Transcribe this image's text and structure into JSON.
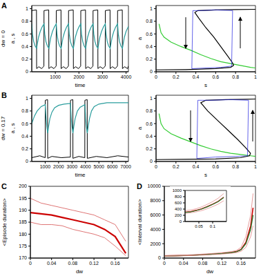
{
  "chart_data": [
    {
      "type": "line",
      "title": "A",
      "xlabel": "time",
      "ylabel": "a , s",
      "annotations": [
        "dw = 0"
      ],
      "xlim": [
        0,
        4100
      ],
      "ylim": [
        0,
        1.05
      ],
      "xticks": [
        1000,
        2000,
        3000,
        4000
      ],
      "yticks": [
        0,
        0.2,
        0.4,
        0.6,
        0.8,
        1
      ],
      "series": [
        {
          "color": "#000000",
          "x": [
            0,
            200,
            206,
            300,
            420,
            515,
            520,
            720,
            726,
            820,
            940,
            1035,
            1040,
            1240,
            1246,
            1340,
            1460,
            1555,
            1560,
            1760,
            1766,
            1860,
            1980,
            2075,
            2080,
            2280,
            2286,
            2380,
            2500,
            2595,
            2600,
            2800,
            2806,
            2900,
            3020,
            3115,
            3120,
            3320,
            3326,
            3420,
            3540,
            3635,
            3640,
            3840,
            3846,
            3940,
            4060,
            4100
          ],
          "values": [
            0.97,
            0.98,
            0.05,
            0.08,
            0.05,
            0.09,
            0.97,
            0.98,
            0.05,
            0.08,
            0.05,
            0.09,
            0.97,
            0.98,
            0.05,
            0.08,
            0.05,
            0.09,
            0.97,
            0.98,
            0.05,
            0.08,
            0.05,
            0.09,
            0.97,
            0.98,
            0.05,
            0.08,
            0.05,
            0.09,
            0.97,
            0.98,
            0.05,
            0.08,
            0.05,
            0.09,
            0.97,
            0.98,
            0.05,
            0.08,
            0.05,
            0.09,
            0.97,
            0.98,
            0.05,
            0.08,
            0.05,
            0.09
          ]
        },
        {
          "color": "#2a9d9d",
          "x": [
            0,
            30,
            80,
            140,
            206,
            240,
            290,
            360,
            440,
            520,
            550,
            600,
            660,
            726,
            760,
            810,
            880,
            960,
            1040,
            1070,
            1120,
            1180,
            1246,
            1280,
            1330,
            1400,
            1480,
            1560,
            1590,
            1640,
            1700,
            1766,
            1800,
            1850,
            1920,
            2000,
            2080,
            2110,
            2160,
            2220,
            2286,
            2320,
            2370,
            2440,
            2520,
            2600,
            2630,
            2680,
            2740,
            2806,
            2840,
            2890,
            2960,
            3040,
            3120,
            3150,
            3200,
            3260,
            3326,
            3360,
            3410,
            3480,
            3560,
            3640,
            3670,
            3720,
            3780,
            3846,
            3880,
            3930,
            4000,
            4100
          ],
          "values": [
            0.76,
            0.6,
            0.48,
            0.41,
            0.37,
            0.45,
            0.55,
            0.64,
            0.71,
            0.76,
            0.6,
            0.48,
            0.41,
            0.37,
            0.45,
            0.55,
            0.64,
            0.71,
            0.76,
            0.6,
            0.48,
            0.41,
            0.37,
            0.45,
            0.55,
            0.64,
            0.71,
            0.76,
            0.6,
            0.48,
            0.41,
            0.37,
            0.45,
            0.55,
            0.64,
            0.71,
            0.76,
            0.6,
            0.48,
            0.41,
            0.37,
            0.45,
            0.55,
            0.64,
            0.71,
            0.76,
            0.6,
            0.48,
            0.41,
            0.37,
            0.45,
            0.55,
            0.64,
            0.71,
            0.76,
            0.6,
            0.48,
            0.41,
            0.37,
            0.45,
            0.55,
            0.64,
            0.71,
            0.76,
            0.6,
            0.48,
            0.41,
            0.37,
            0.45,
            0.55,
            0.64,
            0.72
          ]
        }
      ]
    },
    {
      "type": "line",
      "xlabel": "s",
      "ylabel": "a",
      "xlim": [
        0,
        1
      ],
      "ylim": [
        0,
        1.05
      ],
      "xticks": [
        0,
        0.2,
        0.4,
        0.6,
        0.8,
        1
      ],
      "yticks": [
        0,
        0.2,
        0.4,
        0.6,
        0.8,
        1
      ],
      "series": [
        {
          "color": "#33cc33",
          "x": [
            0.03,
            0.05,
            0.08,
            0.15,
            0.25,
            0.35,
            0.45,
            0.55,
            0.65,
            0.75,
            0.85,
            0.95,
            1.0
          ],
          "values": [
            0.76,
            0.62,
            0.55,
            0.47,
            0.4,
            0.34,
            0.27,
            0.21,
            0.16,
            0.13,
            0.1,
            0.07,
            0.06
          ]
        },
        {
          "color": "#000000",
          "x": [
            0,
            0.3,
            0.6,
            0.75,
            0.78,
            0.77,
            0.72,
            0.65,
            0.58,
            0.5,
            0.43,
            0.39,
            0.42,
            0.6,
            0.8,
            1.0
          ],
          "values": [
            0.03,
            0.035,
            0.05,
            0.07,
            0.1,
            0.14,
            0.25,
            0.4,
            0.55,
            0.7,
            0.85,
            0.94,
            0.97,
            0.98,
            0.985,
            0.99
          ]
        },
        {
          "color": "#2020e0",
          "x": [
            0.77,
            0.6,
            0.45,
            0.37,
            0.36,
            0.37,
            0.5,
            0.65,
            0.76,
            0.77
          ],
          "values": [
            0.97,
            0.98,
            0.97,
            0.97,
            0.05,
            0.05,
            0.06,
            0.07,
            0.09,
            0.97
          ]
        }
      ]
    },
    {
      "type": "line",
      "title": "B",
      "xlabel": "time",
      "ylabel": "a , s",
      "annotations": [
        "dw = 0.17"
      ],
      "xlim": [
        0,
        7200
      ],
      "ylim": [
        0,
        1.05
      ],
      "xticks": [
        1000,
        2000,
        3000,
        4000,
        5000,
        6000,
        7000
      ],
      "yticks": [
        0,
        0.2,
        0.4,
        0.6,
        0.8,
        1
      ],
      "series": [
        {
          "color": "#000000",
          "x": [
            0,
            600,
            1000,
            1006,
            1180,
            1186,
            1500,
            2200,
            2880,
            2886,
            3060,
            3066,
            3500,
            3950,
            3956,
            4130,
            4136,
            4800,
            5600,
            6400,
            7200
          ],
          "values": [
            0.06,
            0.09,
            0.06,
            0.97,
            0.98,
            0.05,
            0.08,
            0.06,
            0.07,
            0.97,
            0.98,
            0.05,
            0.08,
            0.06,
            0.97,
            0.98,
            0.05,
            0.08,
            0.06,
            0.09,
            0.07
          ]
        },
        {
          "color": "#2a9d9d",
          "x": [
            0,
            200,
            400,
            700,
            1000,
            1060,
            1120,
            1186,
            1250,
            1350,
            1500,
            1700,
            2000,
            2400,
            2880,
            2940,
            3000,
            3066,
            3130,
            3230,
            3400,
            3600,
            3950,
            4010,
            4070,
            4136,
            4200,
            4300,
            4450,
            4650,
            5000,
            5600,
            6400,
            7200
          ],
          "values": [
            0.6,
            0.72,
            0.8,
            0.87,
            0.9,
            0.7,
            0.55,
            0.45,
            0.55,
            0.68,
            0.78,
            0.85,
            0.89,
            0.91,
            0.92,
            0.7,
            0.55,
            0.45,
            0.55,
            0.68,
            0.8,
            0.86,
            0.9,
            0.7,
            0.55,
            0.45,
            0.55,
            0.68,
            0.8,
            0.87,
            0.91,
            0.93,
            0.93,
            0.93
          ]
        }
      ]
    },
    {
      "type": "line",
      "xlabel": "s",
      "ylabel": "a",
      "xlim": [
        0,
        1
      ],
      "ylim": [
        0,
        1.05
      ],
      "xticks": [
        0,
        0.2,
        0.4,
        0.6,
        0.8,
        1
      ],
      "yticks": [
        0,
        0.2,
        0.4,
        0.6,
        0.8,
        1
      ],
      "series": [
        {
          "color": "#33cc33",
          "x": [
            0.03,
            0.05,
            0.08,
            0.15,
            0.25,
            0.35,
            0.45,
            0.55,
            0.65,
            0.75,
            0.85,
            0.95,
            1.0
          ],
          "values": [
            0.76,
            0.6,
            0.52,
            0.44,
            0.37,
            0.31,
            0.25,
            0.2,
            0.16,
            0.13,
            0.11,
            0.09,
            0.08
          ]
        },
        {
          "color": "#000000",
          "x": [
            0,
            0.3,
            0.6,
            0.85,
            0.94,
            0.95,
            0.9,
            0.82,
            0.72,
            0.62,
            0.52,
            0.45,
            0.5,
            0.7,
            0.9,
            1.0
          ],
          "values": [
            0.03,
            0.035,
            0.04,
            0.06,
            0.09,
            0.13,
            0.22,
            0.35,
            0.5,
            0.65,
            0.8,
            0.93,
            0.97,
            0.98,
            0.985,
            0.99
          ]
        },
        {
          "color": "#2020e0",
          "x": [
            0.93,
            0.75,
            0.55,
            0.42,
            0.41,
            0.42,
            0.6,
            0.8,
            0.92,
            0.93
          ],
          "values": [
            0.97,
            0.98,
            0.97,
            0.97,
            0.05,
            0.05,
            0.07,
            0.08,
            0.09,
            0.97
          ]
        }
      ]
    },
    {
      "type": "line",
      "title": "C",
      "xlabel": "dw",
      "ylabel": "<Episode duration>",
      "xlim": [
        0,
        0.185
      ],
      "ylim": [
        170,
        200
      ],
      "xticks": [
        0,
        0.04,
        0.08,
        0.12,
        0.16
      ],
      "yticks": [
        170,
        175,
        180,
        185,
        190,
        195,
        200
      ],
      "series": [
        {
          "color": "#cc0000",
          "x": [
            0,
            0.02,
            0.04,
            0.06,
            0.08,
            0.1,
            0.12,
            0.14,
            0.16,
            0.18
          ],
          "values": [
            189,
            188.5,
            188,
            187,
            186,
            185,
            184,
            182,
            179,
            172
          ]
        },
        {
          "color": "#d65050",
          "x": [
            0,
            0.02,
            0.04,
            0.06,
            0.08,
            0.1,
            0.12,
            0.14,
            0.16,
            0.18
          ],
          "values": [
            195,
            193,
            192,
            191,
            190,
            189,
            188,
            186,
            184,
            177
          ]
        },
        {
          "color": "#d65050",
          "x": [
            0,
            0.02,
            0.04,
            0.06,
            0.08,
            0.1,
            0.12,
            0.14,
            0.16,
            0.18
          ],
          "values": [
            185,
            184,
            184,
            183.5,
            182,
            181,
            180,
            178.5,
            175,
            171
          ]
        }
      ]
    },
    {
      "type": "line",
      "title": "D",
      "xlabel": "dw",
      "ylabel": "<Interval duration>",
      "xlim": [
        0,
        0.19
      ],
      "ylim": [
        0,
        10000
      ],
      "xticks": [
        0,
        0.04,
        0.08,
        0.12,
        0.16
      ],
      "yticks": [
        0,
        2000,
        4000,
        6000,
        8000,
        10000
      ],
      "series": [
        {
          "color": "#cc0000",
          "x": [
            0,
            0.02,
            0.04,
            0.06,
            0.08,
            0.1,
            0.12,
            0.14,
            0.15,
            0.16,
            0.17,
            0.18,
            0.185
          ],
          "values": [
            300,
            320,
            360,
            410,
            480,
            560,
            650,
            780,
            900,
            1200,
            2200,
            4500,
            7000
          ]
        },
        {
          "color": "#2e7d32",
          "x": [
            0,
            0.02,
            0.04,
            0.06,
            0.08,
            0.1,
            0.12,
            0.14,
            0.15,
            0.16,
            0.17,
            0.18,
            0.185
          ],
          "values": [
            290,
            310,
            350,
            400,
            470,
            550,
            640,
            770,
            880,
            1150,
            2000,
            4000,
            6000
          ]
        },
        {
          "color": "#e08080",
          "x": [
            0,
            0.02,
            0.04,
            0.06,
            0.08,
            0.1,
            0.12,
            0.14,
            0.15,
            0.16,
            0.17,
            0.18,
            0.185
          ],
          "values": [
            350,
            370,
            410,
            470,
            550,
            640,
            750,
            900,
            1050,
            1500,
            3000,
            6000,
            9000
          ]
        },
        {
          "color": "#e08080",
          "x": [
            0,
            0.02,
            0.04,
            0.06,
            0.08,
            0.1,
            0.12,
            0.14,
            0.15,
            0.16,
            0.17,
            0.18,
            0.185
          ],
          "values": [
            260,
            280,
            310,
            350,
            410,
            480,
            560,
            670,
            760,
            950,
            1500,
            3000,
            4500
          ]
        }
      ]
    },
    {
      "type": "line",
      "xlim": [
        0,
        0.15
      ],
      "ylim": [
        0,
        1000
      ],
      "xticks": [
        0.05,
        0.1
      ],
      "yticks": [
        0,
        200,
        400,
        600,
        800,
        1000
      ],
      "series": [
        {
          "color": "#cc0000",
          "x": [
            0,
            0.02,
            0.04,
            0.06,
            0.08,
            0.1,
            0.12,
            0.14
          ],
          "values": [
            300,
            320,
            360,
            410,
            480,
            560,
            650,
            780
          ]
        },
        {
          "color": "#2e7d32",
          "x": [
            0,
            0.02,
            0.04,
            0.06,
            0.08,
            0.1,
            0.12,
            0.14
          ],
          "values": [
            290,
            310,
            350,
            400,
            470,
            550,
            640,
            770
          ]
        },
        {
          "color": "#e08080",
          "x": [
            0,
            0.02,
            0.04,
            0.06,
            0.08,
            0.1,
            0.12,
            0.14
          ],
          "values": [
            350,
            370,
            410,
            470,
            550,
            640,
            750,
            900
          ]
        },
        {
          "color": "#e08080",
          "x": [
            0,
            0.02,
            0.04,
            0.06,
            0.08,
            0.1,
            0.12,
            0.14
          ],
          "values": [
            260,
            280,
            310,
            350,
            410,
            480,
            560,
            670
          ]
        }
      ]
    }
  ]
}
